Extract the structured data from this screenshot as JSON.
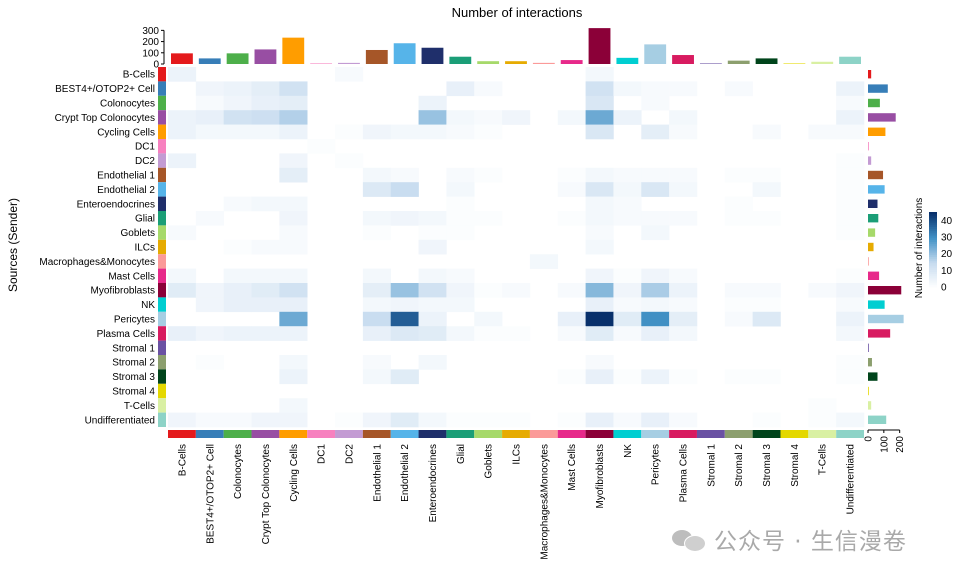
{
  "chart_data": {
    "type": "heatmap",
    "title": "Number of interactions",
    "ylabel": "Sources (Sender)",
    "colorbar": {
      "label": "Number of interactions",
      "ticks": [
        0,
        10,
        20,
        30,
        40
      ],
      "range": [
        0,
        45
      ],
      "low_color": "#ffffff",
      "high_color": "#08306b"
    },
    "top_bar_axis": {
      "ticks": [
        0,
        100,
        200,
        300
      ],
      "range": [
        0,
        330
      ]
    },
    "right_bar_axis": {
      "ticks": [
        0,
        100,
        200
      ],
      "range": [
        0,
        240
      ]
    },
    "cell_types": [
      "B-Cells",
      "BEST4+/OTOP2+ Cell",
      "Colonocytes",
      "Crypt Top Colonocytes",
      "Cycling Cells",
      "DC1",
      "DC2",
      "Endothelial 1",
      "Endothelial 2",
      "Enteroendocrines",
      "Glial",
      "Goblets",
      "ILCs",
      "Macrophages&Monocytes",
      "Mast Cells",
      "Myofibroblasts",
      "NK",
      "Pericytes",
      "Plasma Cells",
      "Stromal 1",
      "Stromal 2",
      "Stromal 3",
      "Stromal 4",
      "T-Cells",
      "Undifferentiated"
    ],
    "cell_colors": [
      "#e41a1c",
      "#377eb8",
      "#4daf4a",
      "#984ea3",
      "#ff9d00",
      "#f781bf",
      "#c39bd3",
      "#a65628",
      "#56b4e9",
      "#1f2f6b",
      "#1b9e77",
      "#a6d96a",
      "#e6ab02",
      "#fb9a99",
      "#e7298a",
      "#8b0038",
      "#00ced1",
      "#a6cee3",
      "#d81b60",
      "#6a51a3",
      "#8c9f6e",
      "#00441b",
      "#e4d800",
      "#d9f0a3",
      "#8dd3c7"
    ],
    "top_bar_values": [
      95,
      50,
      95,
      130,
      235,
      5,
      10,
      125,
      185,
      145,
      65,
      25,
      25,
      10,
      35,
      320,
      55,
      175,
      80,
      5,
      30,
      50,
      5,
      20,
      65
    ],
    "right_bar_values": [
      20,
      125,
      75,
      175,
      110,
      5,
      20,
      95,
      105,
      60,
      65,
      45,
      35,
      5,
      70,
      210,
      105,
      225,
      140,
      5,
      25,
      60,
      5,
      20,
      115
    ],
    "matrix": [
      [
        5,
        0,
        0,
        0,
        0,
        0,
        2,
        0,
        0,
        0,
        0,
        0,
        0,
        0,
        0,
        3,
        0,
        0,
        0,
        0,
        0,
        0,
        0,
        0,
        0
      ],
      [
        0,
        4,
        5,
        7,
        12,
        0,
        0,
        0,
        0,
        0,
        6,
        2,
        0,
        0,
        0,
        12,
        3,
        2,
        2,
        0,
        2,
        0,
        0,
        0,
        5
      ],
      [
        0,
        2,
        4,
        6,
        7,
        0,
        0,
        0,
        0,
        5,
        0,
        0,
        0,
        0,
        0,
        10,
        0,
        2,
        0,
        0,
        0,
        0,
        0,
        0,
        2
      ],
      [
        5,
        6,
        12,
        13,
        17,
        0,
        0,
        0,
        0,
        20,
        3,
        2,
        4,
        0,
        3,
        25,
        5,
        0,
        3,
        0,
        0,
        0,
        0,
        0,
        5
      ],
      [
        5,
        3,
        3,
        3,
        5,
        0,
        1,
        4,
        3,
        3,
        2,
        1,
        0,
        0,
        0,
        10,
        0,
        7,
        2,
        0,
        0,
        2,
        0,
        2,
        2
      ],
      [
        0,
        0,
        0,
        0,
        0,
        1,
        0,
        0,
        0,
        0,
        0,
        0,
        0,
        0,
        0,
        0,
        0,
        0,
        0,
        0,
        0,
        0,
        0,
        0,
        0
      ],
      [
        5,
        0,
        0,
        0,
        4,
        0,
        1,
        0,
        0,
        0,
        0,
        0,
        0,
        0,
        0,
        0,
        0,
        0,
        0,
        0,
        0,
        0,
        0,
        0,
        1
      ],
      [
        0,
        0,
        0,
        0,
        7,
        0,
        0,
        3,
        2,
        0,
        2,
        1,
        0,
        0,
        1,
        3,
        2,
        2,
        2,
        0,
        1,
        1,
        0,
        0,
        1
      ],
      [
        0,
        0,
        0,
        0,
        0,
        0,
        0,
        9,
        14,
        0,
        3,
        0,
        0,
        0,
        2,
        10,
        3,
        10,
        3,
        0,
        0,
        3,
        0,
        0,
        1
      ],
      [
        0,
        0,
        2,
        3,
        3,
        0,
        0,
        0,
        0,
        0,
        1,
        0,
        0,
        0,
        0,
        3,
        2,
        0,
        0,
        0,
        1,
        0,
        0,
        0,
        1
      ],
      [
        0,
        2,
        0,
        0,
        4,
        0,
        0,
        3,
        4,
        3,
        1,
        1,
        0,
        0,
        1,
        3,
        2,
        2,
        2,
        0,
        1,
        1,
        0,
        0,
        1
      ],
      [
        2,
        0,
        0,
        0,
        2,
        0,
        0,
        1,
        0,
        1,
        1,
        0,
        0,
        0,
        0,
        2,
        0,
        3,
        0,
        0,
        0,
        0,
        0,
        0,
        1
      ],
      [
        0,
        0,
        1,
        2,
        2,
        0,
        0,
        0,
        0,
        4,
        0,
        0,
        0,
        0,
        0,
        3,
        0,
        0,
        0,
        0,
        0,
        0,
        0,
        0,
        0
      ],
      [
        0,
        0,
        0,
        0,
        0,
        0,
        0,
        0,
        0,
        0,
        0,
        0,
        0,
        3,
        0,
        0,
        0,
        0,
        0,
        0,
        0,
        0,
        0,
        0,
        0
      ],
      [
        3,
        0,
        3,
        3,
        3,
        0,
        0,
        3,
        0,
        3,
        2,
        0,
        0,
        0,
        0,
        4,
        1,
        4,
        2,
        0,
        0,
        0,
        0,
        0,
        1
      ],
      [
        8,
        4,
        6,
        8,
        12,
        0,
        0,
        7,
        20,
        12,
        4,
        1,
        2,
        0,
        2,
        22,
        4,
        18,
        5,
        0,
        2,
        2,
        0,
        2,
        4
      ],
      [
        0,
        4,
        6,
        6,
        6,
        0,
        0,
        3,
        4,
        3,
        3,
        0,
        0,
        0,
        0,
        6,
        2,
        3,
        2,
        0,
        1,
        1,
        0,
        0,
        2
      ],
      [
        0,
        0,
        0,
        0,
        25,
        0,
        0,
        14,
        38,
        5,
        0,
        3,
        0,
        0,
        6,
        45,
        8,
        30,
        7,
        0,
        2,
        9,
        0,
        0,
        5
      ],
      [
        6,
        4,
        5,
        5,
        5,
        0,
        0,
        6,
        9,
        8,
        3,
        1,
        1,
        0,
        2,
        8,
        2,
        6,
        3,
        0,
        0,
        0,
        0,
        0,
        3
      ],
      [
        0,
        0,
        0,
        0,
        0,
        0,
        0,
        0,
        0,
        0,
        0,
        0,
        0,
        0,
        0,
        0,
        0,
        0,
        0,
        0,
        0,
        0,
        0,
        0,
        0
      ],
      [
        0,
        1,
        0,
        0,
        3,
        0,
        0,
        2,
        0,
        3,
        0,
        0,
        0,
        0,
        0,
        2,
        0,
        0,
        0,
        0,
        0,
        0,
        0,
        0,
        1
      ],
      [
        0,
        0,
        0,
        0,
        5,
        0,
        0,
        3,
        8,
        0,
        0,
        0,
        0,
        0,
        1,
        6,
        1,
        5,
        1,
        0,
        1,
        1,
        0,
        0,
        1
      ],
      [
        0,
        0,
        0,
        0,
        0,
        0,
        0,
        0,
        0,
        0,
        0,
        0,
        0,
        0,
        0,
        0,
        0,
        0,
        0,
        0,
        0,
        0,
        0,
        0,
        0
      ],
      [
        0,
        0,
        0,
        0,
        3,
        0,
        0,
        0,
        0,
        0,
        0,
        0,
        0,
        0,
        0,
        0,
        0,
        0,
        0,
        0,
        0,
        0,
        0,
        1,
        0
      ],
      [
        4,
        2,
        2,
        4,
        4,
        0,
        1,
        4,
        8,
        3,
        1,
        1,
        1,
        0,
        1,
        6,
        2,
        6,
        2,
        0,
        0,
        1,
        0,
        1,
        3
      ]
    ]
  },
  "watermark": {
    "text": "公众号 · 生信漫卷",
    "icon": "wechat-icon"
  }
}
